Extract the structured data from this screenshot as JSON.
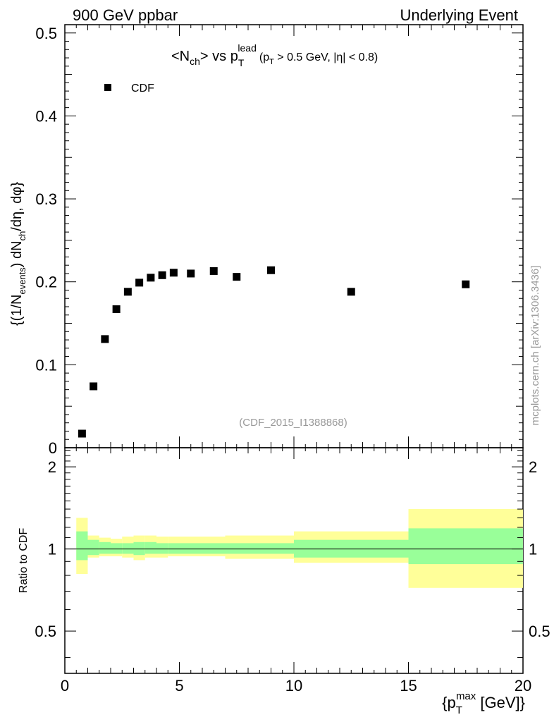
{
  "header": {
    "left": "900 GeV ppbar",
    "right": "Underlying Event"
  },
  "side_label": "mcplots.cern.ch [arXiv:1306.3436]",
  "analysis_tag": "(CDF_2015_I1388868)",
  "colors": {
    "band_inner": "#99ff99",
    "band_outer": "#ffff99",
    "marker": "#000000"
  },
  "chart_data": {
    "type": "scatter",
    "title": "<N_ch> vs p_T^lead (p_T > 0.5 GeV, |η| < 0.8)",
    "title_parts": {
      "lt": "<N",
      "ch": "ch",
      "gt_vs": "> vs p",
      "T": "T",
      "lead": "lead",
      "cut_open": "(p",
      "cut_T": "T",
      "cut_rest": " > 0.5 GeV, |η| < 0.8)"
    },
    "ylabel": "{(1/N_events) dN_ch/dη, dφ}",
    "ylabel_parts": {
      "a": "{(1/N",
      "events": "events",
      "b": ") dN",
      "ch": "ch",
      "c": "/dη, dφ}"
    },
    "xlabel": "{p_T^max [GeV]}",
    "xlabel_parts": {
      "open": "{p",
      "T": "T",
      "max": "max",
      "rest": " [GeV]}"
    },
    "xlim": [
      0,
      20
    ],
    "ylim": [
      0,
      0.51
    ],
    "x_ticks": [
      0,
      5,
      10,
      15,
      20
    ],
    "x_tick_labels": [
      "0",
      "5",
      "10",
      "15",
      "20"
    ],
    "y_ticks": [
      0,
      0.1,
      0.2,
      0.3,
      0.4,
      0.5
    ],
    "y_tick_labels": [
      "0",
      "0.1",
      "0.2",
      "0.3",
      "0.4",
      "0.5"
    ],
    "legend": {
      "label": "CDF",
      "placement": "top-left"
    },
    "series": [
      {
        "name": "CDF",
        "x": [
          0.75,
          1.25,
          1.75,
          2.25,
          2.75,
          3.25,
          3.75,
          4.25,
          4.75,
          5.5,
          6.5,
          7.5,
          9.0,
          12.5,
          17.5
        ],
        "y": [
          0.017,
          0.074,
          0.131,
          0.167,
          0.188,
          0.199,
          0.205,
          0.208,
          0.211,
          0.21,
          0.213,
          0.206,
          0.214,
          0.188,
          0.197
        ]
      }
    ],
    "ratio": {
      "ylabel": "Ratio to CDF",
      "ylim": [
        0.35,
        2.35
      ],
      "y_ticks": [
        0.5,
        1,
        2
      ],
      "y_tick_labels": [
        "0.5",
        "1",
        "2"
      ],
      "reference": 1,
      "bins": [
        {
          "lo": 0.5,
          "hi": 1.0,
          "inner": [
            0.91,
            1.16
          ],
          "outer": [
            0.81,
            1.3
          ]
        },
        {
          "lo": 1.0,
          "hi": 1.5,
          "inner": [
            0.95,
            1.08
          ],
          "outer": [
            0.93,
            1.12
          ]
        },
        {
          "lo": 1.5,
          "hi": 2.0,
          "inner": [
            0.96,
            1.06
          ],
          "outer": [
            0.94,
            1.1
          ]
        },
        {
          "lo": 2.0,
          "hi": 2.5,
          "inner": [
            0.96,
            1.05
          ],
          "outer": [
            0.94,
            1.09
          ]
        },
        {
          "lo": 2.5,
          "hi": 3.0,
          "inner": [
            0.96,
            1.05
          ],
          "outer": [
            0.93,
            1.11
          ]
        },
        {
          "lo": 3.0,
          "hi": 3.5,
          "inner": [
            0.95,
            1.06
          ],
          "outer": [
            0.91,
            1.12
          ]
        },
        {
          "lo": 3.5,
          "hi": 4.0,
          "inner": [
            0.96,
            1.06
          ],
          "outer": [
            0.93,
            1.12
          ]
        },
        {
          "lo": 4.0,
          "hi": 4.5,
          "inner": [
            0.96,
            1.05
          ],
          "outer": [
            0.93,
            1.11
          ]
        },
        {
          "lo": 4.5,
          "hi": 5.0,
          "inner": [
            0.96,
            1.05
          ],
          "outer": [
            0.94,
            1.11
          ]
        },
        {
          "lo": 5.0,
          "hi": 6.0,
          "inner": [
            0.96,
            1.05
          ],
          "outer": [
            0.94,
            1.11
          ]
        },
        {
          "lo": 6.0,
          "hi": 7.0,
          "inner": [
            0.96,
            1.05
          ],
          "outer": [
            0.94,
            1.11
          ]
        },
        {
          "lo": 7.0,
          "hi": 8.0,
          "inner": [
            0.96,
            1.05
          ],
          "outer": [
            0.92,
            1.12
          ]
        },
        {
          "lo": 8.0,
          "hi": 10.0,
          "inner": [
            0.96,
            1.05
          ],
          "outer": [
            0.92,
            1.12
          ]
        },
        {
          "lo": 10.0,
          "hi": 15.0,
          "inner": [
            0.93,
            1.08
          ],
          "outer": [
            0.89,
            1.16
          ]
        },
        {
          "lo": 15.0,
          "hi": 20.0,
          "inner": [
            0.88,
            1.19
          ],
          "outer": [
            0.72,
            1.4
          ]
        }
      ]
    }
  }
}
